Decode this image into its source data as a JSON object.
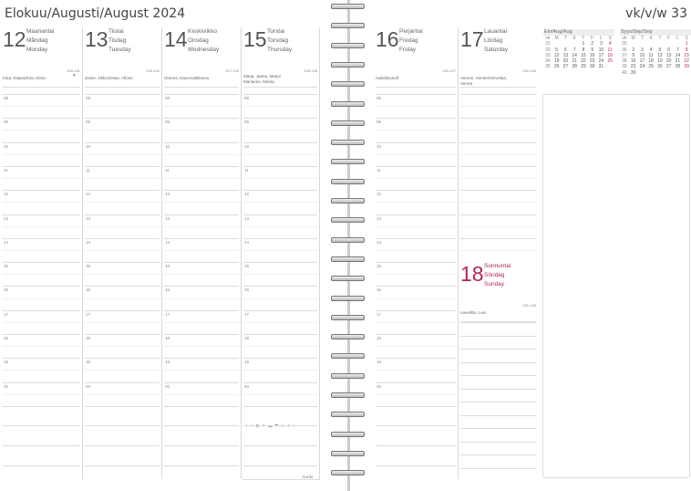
{
  "header": {
    "title": "Elokuu/Augusti/August 2024",
    "week": "vk/v/w 33"
  },
  "days": [
    {
      "num": "12",
      "fi": "Maanantai",
      "sv": "Måndag",
      "en": "Monday",
      "code": "225-141",
      "names": "Kiira, Klaara/Kira, Klara",
      "moon": "moon-first-quarter",
      "sunday": false
    },
    {
      "num": "13",
      "fi": "Tiistai",
      "sv": "Tisdag",
      "en": "Tuesday",
      "code": "226-140",
      "names": "Jesse, Okko/Jesse, Alfons",
      "sunday": false
    },
    {
      "num": "14",
      "fi": "Keskiviikko",
      "sv": "Onsdag",
      "en": "Wednesday",
      "code": "227-139",
      "names": "Onerva, Kanerva/Bianca",
      "sunday": false
    },
    {
      "num": "15",
      "fi": "Torstai",
      "sv": "Torsdag",
      "en": "Thursday",
      "code": "228-138",
      "names": "Marja, Jaana, Marjo/ Marianne, Marita",
      "sunday": false
    },
    {
      "num": "16",
      "fi": "Perjantai",
      "sv": "Fredag",
      "en": "Friday",
      "code": "229-137",
      "names": "Aulis/Brynolf",
      "sunday": false
    },
    {
      "num": "17",
      "fi": "Lauantai",
      "sv": "Lördag",
      "en": "Saturday",
      "code": "230-136",
      "names": "Vernon, Verneri/Veronika, Vernar",
      "sunday": false
    },
    {
      "num": "18",
      "fi": "Sunnuntai",
      "sv": "Söndag",
      "en": "Sunday",
      "code": "231-135",
      "names": "Leevi/Bo, Levi",
      "sunday": true
    }
  ],
  "hours": [
    "08",
    "09",
    "10",
    "11",
    "12",
    "13",
    "14",
    "15",
    "16",
    "17",
    "18",
    "19",
    "20"
  ],
  "symbols": "♂ ♀ ✿ ☀ ☁ ☂ ♨ ✈ ♪",
  "footer": "burde",
  "colors": {
    "sunday": "#b3264f",
    "text": "#555555",
    "lines": "#dcdcdc"
  },
  "mini_calendars": [
    {
      "title": "Elo/Aug/Aug",
      "head": [
        "vk",
        "M",
        "T",
        "K",
        "T",
        "F",
        "L",
        "S"
      ],
      "weeks": [
        [
          "31",
          "",
          "",
          "",
          "1",
          "2",
          "3",
          "4"
        ],
        [
          "32",
          "5",
          "6",
          "7",
          "8",
          "9",
          "10",
          "11"
        ],
        [
          "33",
          "12",
          "13",
          "14",
          "15",
          "16",
          "17",
          "18"
        ],
        [
          "34",
          "19",
          "20",
          "21",
          "22",
          "23",
          "24",
          "25"
        ],
        [
          "35",
          "26",
          "27",
          "28",
          "29",
          "30",
          "31",
          ""
        ]
      ]
    },
    {
      "title": "Syys/Sep/Sep",
      "head": [
        "vk",
        "M",
        "T",
        "K",
        "T",
        "F",
        "L",
        "S"
      ],
      "weeks": [
        [
          "35",
          "",
          "",
          "",
          "",
          "",
          "",
          "1"
        ],
        [
          "36",
          "2",
          "3",
          "4",
          "5",
          "6",
          "7",
          "8"
        ],
        [
          "37",
          "9",
          "10",
          "11",
          "12",
          "13",
          "14",
          "15"
        ],
        [
          "38",
          "16",
          "17",
          "18",
          "19",
          "20",
          "21",
          "22"
        ],
        [
          "39",
          "23",
          "24",
          "25",
          "26",
          "27",
          "28",
          "29"
        ],
        [
          "40",
          "30",
          "",
          "",
          "",
          "",
          "",
          ""
        ]
      ]
    }
  ]
}
